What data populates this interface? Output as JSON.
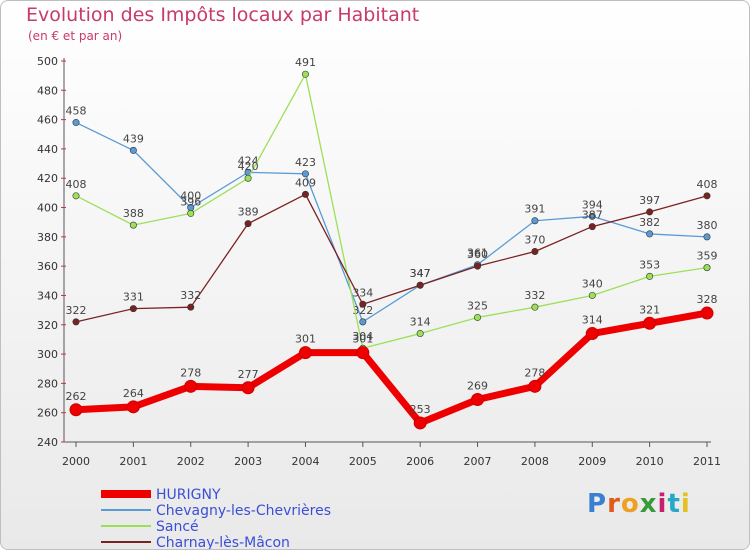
{
  "chart_data": {
    "type": "line",
    "title": "Evolution des Impôts locaux par Habitant",
    "subtitle": "(en € et par an)",
    "x": [
      "2000",
      "2001",
      "2002",
      "2003",
      "2004",
      "2005",
      "2006",
      "2007",
      "2008",
      "2009",
      "2010",
      "2011"
    ],
    "ylim": [
      240,
      500
    ],
    "yticks": [
      240,
      260,
      280,
      300,
      320,
      340,
      360,
      380,
      400,
      420,
      440,
      460,
      480,
      500
    ],
    "grid": false,
    "legend_position": "bottom-left",
    "series": [
      {
        "name": "HURIGNY",
        "color": "#ee0000",
        "emphasis": true,
        "values": [
          262,
          264,
          278,
          277,
          301,
          301,
          253,
          269,
          278,
          314,
          321,
          328
        ]
      },
      {
        "name": "Chevagny-les-Chevrières",
        "color": "#5b9bd5",
        "emphasis": false,
        "values": [
          458,
          439,
          400,
          424,
          423,
          322,
          347,
          361,
          391,
          394,
          382,
          380
        ]
      },
      {
        "name": "Sancé",
        "color": "#9ce05a",
        "emphasis": false,
        "values": [
          408,
          388,
          396,
          420,
          491,
          304,
          314,
          325,
          332,
          340,
          353,
          359
        ]
      },
      {
        "name": "Charnay-lès-Mâcon",
        "color": "#7a2222",
        "emphasis": false,
        "values": [
          322,
          331,
          332,
          389,
          409,
          334,
          347,
          360,
          370,
          387,
          397,
          408
        ]
      }
    ]
  },
  "brand": {
    "letters": [
      "P",
      "r",
      "o",
      "x",
      "i",
      "t",
      "i"
    ],
    "colors": [
      "#3a7fd0",
      "#e05a1c",
      "#f0a020",
      "#3a9a3a",
      "#c81e6e",
      "#26a9c8",
      "#e4c020"
    ]
  }
}
